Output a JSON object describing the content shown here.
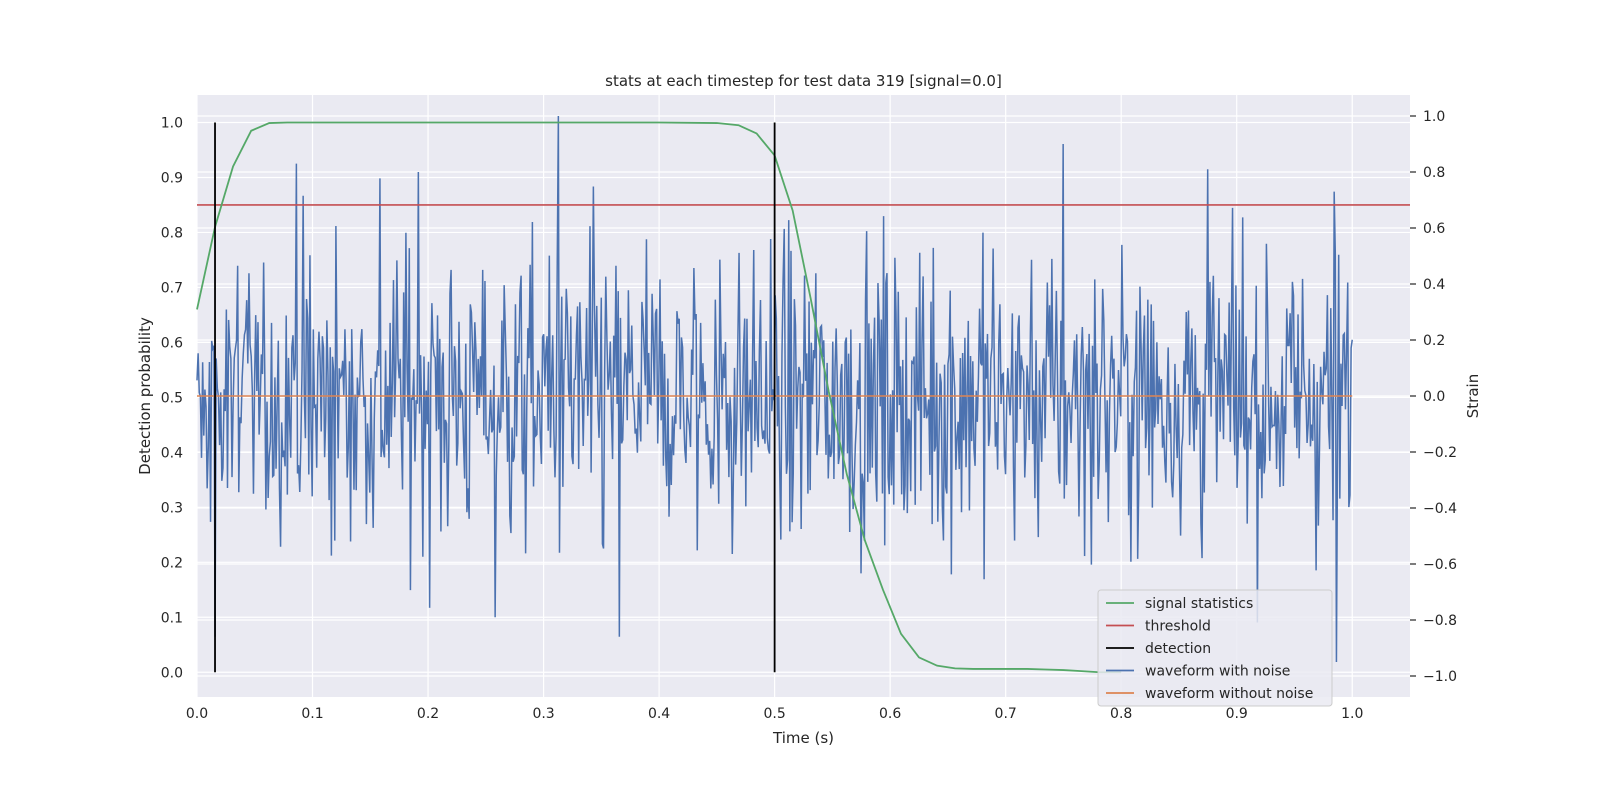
{
  "chart_data": {
    "type": "line",
    "title": "stats at each timestep for test data 319 [signal=0.0]",
    "xlabel": "Time (s)",
    "ylabel_left": "Detection probability",
    "ylabel_right": "Strain",
    "xlim": [
      0.0,
      1.05
    ],
    "ylim_left": [
      -0.045,
      1.05
    ],
    "ylim_right": [
      -1.075,
      1.075
    ],
    "x_ticks": [
      0.0,
      0.1,
      0.2,
      0.3,
      0.4,
      0.5,
      0.6,
      0.7,
      0.8,
      0.9,
      1.0
    ],
    "x_tick_labels": [
      "0.0",
      "0.1",
      "0.2",
      "0.3",
      "0.4",
      "0.5",
      "0.6",
      "0.7",
      "0.8",
      "0.9",
      "1.0"
    ],
    "y_left_ticks": [
      0.0,
      0.1,
      0.2,
      0.3,
      0.4,
      0.5,
      0.6,
      0.7,
      0.8,
      0.9,
      1.0
    ],
    "y_left_tick_labels": [
      "0.0",
      "0.1",
      "0.2",
      "0.3",
      "0.4",
      "0.5",
      "0.6",
      "0.7",
      "0.8",
      "0.9",
      "1.0"
    ],
    "y_right_ticks": [
      -1.0,
      -0.8,
      -0.6,
      -0.4,
      -0.2,
      0.0,
      0.2,
      0.4,
      0.6,
      0.8,
      1.0
    ],
    "y_right_tick_labels": [
      "−1.0",
      "−0.8",
      "−0.6",
      "−0.4",
      "−0.2",
      "0.0",
      "0.2",
      "0.4",
      "0.6",
      "0.8",
      "1.0"
    ],
    "grid": true,
    "legend_position": "lower-right",
    "background": "#eaeaf2",
    "series": [
      {
        "name": "signal statistics",
        "axis": "left",
        "color": "#55a868",
        "x": [
          0.0,
          0.0156,
          0.0312,
          0.0469,
          0.0625,
          0.0781,
          0.1,
          0.2,
          0.3,
          0.4,
          0.45,
          0.4688,
          0.4844,
          0.5,
          0.5156,
          0.5312,
          0.5469,
          0.5625,
          0.5781,
          0.5938,
          0.6094,
          0.625,
          0.6406,
          0.6562,
          0.6719,
          0.6875,
          0.7031,
          0.7188,
          0.7344,
          0.75,
          0.7656,
          0.7812,
          0.8
        ],
        "y": [
          0.66,
          0.81,
          0.92,
          0.985,
          0.999,
          1.0,
          1.0,
          1.0,
          1.0,
          1.0,
          0.999,
          0.995,
          0.98,
          0.94,
          0.84,
          0.68,
          0.51,
          0.36,
          0.24,
          0.15,
          0.07,
          0.027,
          0.012,
          0.007,
          0.006,
          0.006,
          0.006,
          0.006,
          0.005,
          0.004,
          0.002,
          0.0,
          0.0
        ]
      },
      {
        "name": "threshold",
        "axis": "left",
        "color": "#c44e52",
        "x": [
          0.0,
          1.05
        ],
        "y": [
          0.85,
          0.85
        ]
      },
      {
        "name": "detection",
        "axis": "left",
        "color": "#000000",
        "segments": [
          {
            "x": 0.0156,
            "y": [
              0.0,
              1.0
            ]
          },
          {
            "x": 0.5,
            "y": [
              0.0,
              1.0
            ]
          }
        ]
      },
      {
        "name": "waveform with noise",
        "axis": "right",
        "color": "#4c72b0",
        "x_range": [
          0.0,
          1.0
        ],
        "n_points": 1024,
        "std": 0.26,
        "approx_range": [
          -0.95,
          1.0
        ],
        "markers": [
          {
            "x": 0.0859,
            "y": 0.83
          },
          {
            "x": 0.1914,
            "y": 0.8
          },
          {
            "x": 0.2578,
            "y": 0.82
          },
          {
            "x": 0.3125,
            "y": 1.0
          },
          {
            "x": 0.75,
            "y": 0.9
          },
          {
            "x": 0.875,
            "y": 0.81
          },
          {
            "x": 0.9844,
            "y": 0.73
          },
          {
            "x": 0.0156,
            "y": -0.86
          },
          {
            "x": 0.2578,
            "y": -0.79
          },
          {
            "x": 0.3652,
            "y": -0.86
          },
          {
            "x": 0.9863,
            "y": -0.95
          }
        ]
      },
      {
        "name": "waveform without noise",
        "axis": "right",
        "color": "#dd8452",
        "x": [
          0.0,
          1.0
        ],
        "y": [
          0.0,
          0.0
        ]
      }
    ]
  }
}
